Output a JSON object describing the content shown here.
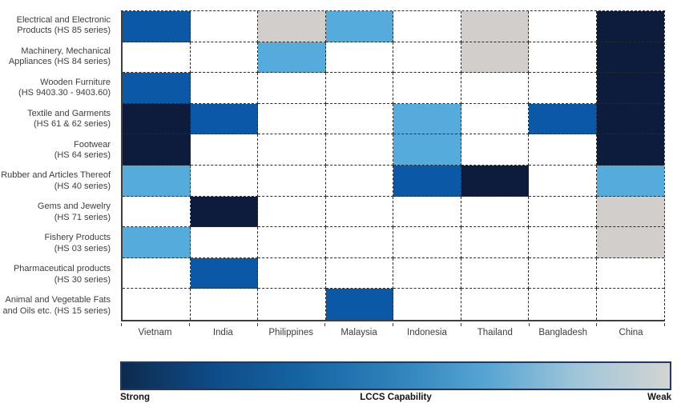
{
  "chart_data": {
    "type": "heatmap",
    "title": "",
    "columns": [
      "Vietnam",
      "India",
      "Philippines",
      "Malaysia",
      "Indonesia",
      "Thailand",
      "Bangladesh",
      "China"
    ],
    "rows": [
      {
        "label_lines": [
          "Electrical and Electronic",
          "Products (HS 85 series)"
        ],
        "values": [
          "high",
          "none",
          "weak",
          "moderate",
          "none",
          "weak",
          "none",
          "strong"
        ]
      },
      {
        "label_lines": [
          "Machinery, Mechanical",
          "Appliances (HS 84 series)"
        ],
        "values": [
          "none",
          "none",
          "moderate",
          "none",
          "none",
          "weak",
          "none",
          "strong"
        ]
      },
      {
        "label_lines": [
          "Wooden Furniture",
          "(HS 9403.30 - 9403.60)"
        ],
        "values": [
          "high",
          "none",
          "none",
          "none",
          "none",
          "none",
          "none",
          "strong"
        ]
      },
      {
        "label_lines": [
          "Textile and Garments",
          "(HS 61 & 62 series)"
        ],
        "values": [
          "strong",
          "high",
          "none",
          "none",
          "moderate",
          "none",
          "high",
          "strong"
        ]
      },
      {
        "label_lines": [
          "Footwear",
          "(HS 64 series)"
        ],
        "values": [
          "strong",
          "none",
          "none",
          "none",
          "moderate",
          "none",
          "none",
          "strong"
        ]
      },
      {
        "label_lines": [
          "Rubber and Articles Thereof",
          "(HS 40 series)"
        ],
        "values": [
          "moderate",
          "none",
          "none",
          "none",
          "high",
          "strong",
          "none",
          "moderate"
        ]
      },
      {
        "label_lines": [
          "Gems and Jewelry",
          "(HS 71 series)"
        ],
        "values": [
          "none",
          "strong",
          "none",
          "none",
          "none",
          "none",
          "none",
          "weak"
        ]
      },
      {
        "label_lines": [
          "Fishery Products",
          "(HS 03 series)"
        ],
        "values": [
          "moderate",
          "none",
          "none",
          "none",
          "none",
          "none",
          "none",
          "weak"
        ]
      },
      {
        "label_lines": [
          "Pharmaceutical products",
          "(HS 30 series)"
        ],
        "values": [
          "none",
          "high",
          "none",
          "none",
          "none",
          "none",
          "none",
          "none"
        ]
      },
      {
        "label_lines": [
          "Animal and Vegetable Fats",
          "and Oils etc. (HS 15 series)"
        ],
        "values": [
          "none",
          "none",
          "none",
          "high",
          "none",
          "none",
          "none",
          "none"
        ]
      }
    ],
    "palette": {
      "strong": "#0d1c3d",
      "high": "#0b58a6",
      "moderate": "#55acdc",
      "weak": "#d1cecb",
      "none": "#ffffff"
    },
    "legend": {
      "label": "LCCS Capability",
      "strong_label": "Strong",
      "weak_label": "Weak",
      "gradient": [
        "#0d2b4d",
        "#0e4c88",
        "#1565a3",
        "#2e83bb",
        "#57a5d3",
        "#a0c6d9",
        "#d3d4d2"
      ]
    },
    "layout_hints": {
      "gridlines": "dashed",
      "legend_position": "bottom"
    }
  }
}
